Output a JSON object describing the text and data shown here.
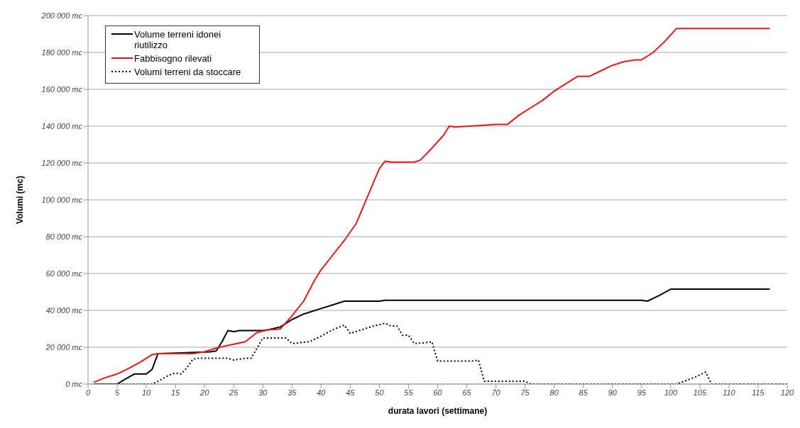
{
  "chart_data": {
    "type": "line",
    "xlabel": "durata lavori (settimane)",
    "ylabel": "Volumi (mc)",
    "xlim": [
      0,
      120
    ],
    "xticks": [
      0,
      5,
      10,
      15,
      20,
      25,
      30,
      35,
      40,
      45,
      50,
      55,
      60,
      65,
      70,
      75,
      80,
      85,
      90,
      95,
      100,
      105,
      110,
      115,
      120
    ],
    "ylim": [
      0,
      200000
    ],
    "yticks": [
      {
        "value": 0,
        "label": "0 mc"
      },
      {
        "value": 20000,
        "label": "20 000 mc"
      },
      {
        "value": 40000,
        "label": "40 000 mc"
      },
      {
        "value": 60000,
        "label": "60 000 mc"
      },
      {
        "value": 80000,
        "label": "80 000 mc"
      },
      {
        "value": 100000,
        "label": "100 000 mc"
      },
      {
        "value": 120000,
        "label": "120 000 mc"
      },
      {
        "value": 140000,
        "label": "140 000 mc"
      },
      {
        "value": 160000,
        "label": "160 000 mc"
      },
      {
        "value": 180000,
        "label": "180 000 mc"
      },
      {
        "value": 200000,
        "label": "200 000 mc"
      }
    ],
    "grid": "y",
    "legend": "top left",
    "marker": "none",
    "series": [
      {
        "name": "Volume terreni idonei riutilizzo",
        "color": "#000000",
        "line_style": "solid",
        "x": [
          1,
          5,
          6,
          8,
          10,
          11,
          12,
          21,
          22,
          23,
          24,
          25,
          26,
          30,
          31,
          33,
          35,
          37,
          40,
          42,
          44,
          45,
          50,
          51,
          52,
          95,
          96,
          98,
          100,
          117
        ],
        "values": [
          0,
          0,
          2000,
          5500,
          5500,
          8000,
          16500,
          17500,
          18000,
          23000,
          29000,
          28500,
          29000,
          29000,
          29500,
          31000,
          35000,
          38000,
          41000,
          43000,
          45000,
          45000,
          45000,
          45500,
          45500,
          45500,
          45000,
          48000,
          51500,
          51500
        ]
      },
      {
        "name": "Fabbisogno rilevati",
        "color": "#e31a1c",
        "line_style": "solid",
        "x": [
          1,
          3,
          5,
          7,
          9,
          11,
          12,
          18,
          20,
          22,
          24,
          27,
          29,
          31,
          32,
          33,
          35,
          37,
          39,
          40,
          42,
          44,
          46,
          48,
          50,
          51,
          52,
          56,
          57,
          59,
          61,
          62,
          63,
          68,
          70,
          72,
          74,
          76,
          78,
          80,
          82,
          84,
          86,
          88,
          90,
          92,
          94,
          95,
          97,
          99,
          101,
          117
        ],
        "values": [
          1000,
          3500,
          5500,
          8500,
          12000,
          16000,
          16500,
          16500,
          17500,
          19500,
          21000,
          23000,
          28000,
          29500,
          29500,
          30000,
          37000,
          45000,
          57000,
          62000,
          70000,
          78000,
          87000,
          102000,
          117000,
          121000,
          120500,
          120500,
          121500,
          128000,
          135000,
          140000,
          139500,
          140500,
          141000,
          141000,
          146000,
          150000,
          154000,
          159000,
          163000,
          167000,
          167000,
          170000,
          173000,
          175000,
          176000,
          176000,
          180000,
          186000,
          193000,
          193000
        ]
      },
      {
        "name": "Volumi terreni da stoccare",
        "color": "#000000",
        "line_style": "dotted",
        "x": [
          1,
          11,
          12,
          14,
          15,
          16,
          17,
          18,
          19,
          24,
          25,
          27,
          28,
          30,
          34,
          35,
          38,
          40,
          42,
          44,
          45,
          47,
          49,
          51,
          52,
          53,
          54,
          55,
          56,
          58,
          59,
          60,
          66,
          67,
          68,
          69,
          75,
          76,
          101,
          104,
          106,
          107,
          120
        ],
        "values": [
          0,
          0,
          1500,
          5000,
          6000,
          5500,
          9000,
          13500,
          14000,
          14000,
          13000,
          14000,
          14000,
          25000,
          25000,
          22000,
          23000,
          26000,
          29500,
          32000,
          27500,
          29500,
          31500,
          33000,
          31500,
          31500,
          26500,
          26500,
          22000,
          22500,
          23000,
          12500,
          12500,
          13000,
          1500,
          1500,
          1500,
          0,
          0,
          3500,
          6500,
          0,
          0
        ]
      }
    ]
  }
}
